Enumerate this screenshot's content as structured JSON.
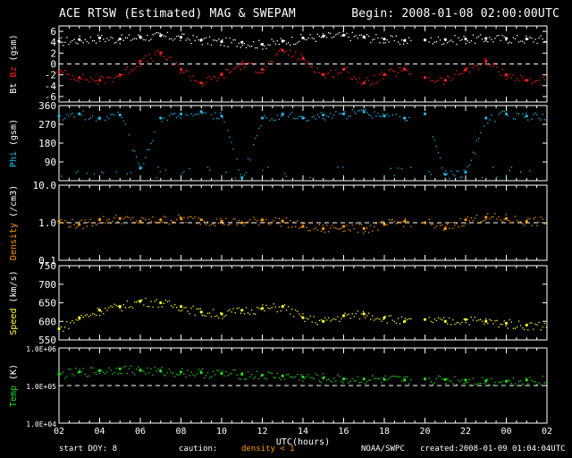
{
  "header": {
    "title": "ACE RTSW (Estimated) MAG & SWEPAM",
    "begin": "Begin: 2008-01-08 02:00:00UTC"
  },
  "footer": {
    "start_doy_label": "start DOY:   8",
    "caution_label": "caution:",
    "density_caution": "density < 1",
    "source": "NOAA/SWPC",
    "created": "created:2008-01-09 01:04:04UTC"
  },
  "colors": {
    "background": "#000000",
    "axis": "#ffffff",
    "bt": "#ffffff",
    "bz": "#ff2020",
    "phi": "#22b8e8",
    "density": "#ff9900",
    "speed": "#ffff33",
    "temp": "#22dd22"
  },
  "chart_data": {
    "type": "scatter",
    "title": "ACE RTSW (Estimated) MAG & SWEPAM",
    "xlabel": "UTC(hours)",
    "x_ticks": [
      "02",
      "04",
      "06",
      "08",
      "10",
      "12",
      "14",
      "16",
      "18",
      "20",
      "22",
      "00",
      "02"
    ],
    "xlim_hours": [
      2,
      26
    ],
    "panels": [
      {
        "id": "mag",
        "ylabel_parts": [
          "Bt",
          "Bz",
          "(gsm)"
        ],
        "ylim": [
          -7,
          7
        ],
        "y_ticks": [
          "-6",
          "-4",
          "-2",
          "0",
          "2",
          "4",
          "6"
        ],
        "y_tick_values": [
          -6,
          -4,
          -2,
          0,
          2,
          4,
          6
        ],
        "ref_line": 0,
        "series": [
          {
            "name": "Bt",
            "color": "#ffffff",
            "x": [
              2,
              3,
              4,
              5,
              6,
              7,
              8,
              9,
              10,
              11,
              12,
              13,
              14,
              15,
              16,
              17,
              18,
              19,
              20,
              21,
              22,
              23,
              24,
              25
            ],
            "y": [
              4.2,
              4.5,
              4.8,
              4.6,
              5.0,
              5.2,
              4.9,
              4.4,
              4.1,
              4.0,
              3.6,
              4.2,
              4.8,
              5.1,
              5.3,
              5.0,
              4.6,
              4.3,
              4.4,
              4.5,
              4.6,
              4.7,
              4.7,
              4.6
            ]
          },
          {
            "name": "Bz",
            "color": "#ff2020",
            "x": [
              2,
              3,
              4,
              5,
              6,
              7,
              8,
              9,
              10,
              11,
              12,
              13,
              14,
              15,
              16,
              17,
              18,
              19,
              20,
              21,
              22,
              23,
              24,
              25
            ],
            "y": [
              -1.5,
              -2.5,
              -3.0,
              -2.0,
              0.5,
              2.0,
              -1.0,
              -3.5,
              -2.0,
              0.0,
              -1.0,
              2.5,
              1.0,
              -2.0,
              -1.0,
              -3.5,
              -2.0,
              -1.0,
              -2.5,
              -3.0,
              -1.0,
              0.5,
              -2.0,
              -3.0
            ]
          }
        ]
      },
      {
        "id": "phi",
        "ylabel_parts": [
          "Phi",
          "(gsm)"
        ],
        "ylim": [
          0,
          360
        ],
        "y_ticks": [
          "90",
          "180",
          "270",
          "360"
        ],
        "y_tick_values": [
          90,
          180,
          270,
          360
        ],
        "series": [
          {
            "name": "Phi",
            "color": "#22b8e8",
            "x": [
              2,
              3,
              4,
              5,
              6,
              7,
              8,
              9,
              10,
              11,
              12,
              13,
              14,
              15,
              16,
              17,
              18,
              19,
              20,
              21,
              22,
              23,
              24,
              25
            ],
            "y": [
              310,
              320,
              300,
              315,
              60,
              300,
              320,
              330,
              310,
              15,
              300,
              320,
              300,
              315,
              320,
              330,
              310,
              300,
              320,
              30,
              40,
              300,
              320,
              310
            ]
          }
        ]
      },
      {
        "id": "density",
        "ylabel_parts": [
          "Density",
          "(/cm3)"
        ],
        "y_scale": "log",
        "ylim": [
          0.1,
          10
        ],
        "y_ticks": [
          "0.1",
          "1.0",
          "10.0"
        ],
        "y_tick_values": [
          0.1,
          1,
          10
        ],
        "ref_line": 1,
        "series": [
          {
            "name": "Density",
            "color": "#ff9900",
            "x": [
              2,
              3,
              4,
              5,
              6,
              7,
              8,
              9,
              10,
              11,
              12,
              13,
              14,
              15,
              16,
              17,
              18,
              19,
              20,
              21,
              22,
              23,
              24,
              25
            ],
            "y": [
              1.1,
              0.9,
              1.2,
              1.3,
              1.1,
              1.2,
              1.3,
              1.2,
              1.1,
              1.0,
              1.2,
              1.1,
              0.8,
              0.7,
              0.8,
              0.7,
              0.9,
              1.1,
              1.0,
              0.7,
              1.2,
              1.4,
              1.3,
              1.1
            ]
          }
        ]
      },
      {
        "id": "speed",
        "ylabel_parts": [
          "Speed",
          "(km/s)"
        ],
        "ylim": [
          550,
          750
        ],
        "y_ticks": [
          "550",
          "600",
          "650",
          "700",
          "750"
        ],
        "y_tick_values": [
          550,
          600,
          650,
          700,
          750
        ],
        "series": [
          {
            "name": "Speed",
            "color": "#ffff33",
            "x": [
              2,
              3,
              4,
              5,
              6,
              7,
              8,
              9,
              10,
              11,
              12,
              13,
              14,
              15,
              16,
              17,
              18,
              19,
              20,
              21,
              22,
              23,
              24,
              25
            ],
            "y": [
              580,
              610,
              630,
              640,
              655,
              650,
              640,
              625,
              620,
              630,
              635,
              640,
              610,
              600,
              615,
              620,
              610,
              600,
              605,
              600,
              605,
              600,
              595,
              590
            ]
          }
        ]
      },
      {
        "id": "temp",
        "ylabel_parts": [
          "Temp",
          "(K)"
        ],
        "y_scale": "log",
        "ylim": [
          10000,
          1000000
        ],
        "y_ticks": [
          "1.0E+04",
          "1.0E+05",
          "1.0E+06"
        ],
        "y_tick_values": [
          10000,
          100000,
          1000000
        ],
        "ref_line": 100000,
        "series": [
          {
            "name": "Temp",
            "color": "#22dd22",
            "x": [
              2,
              3,
              4,
              5,
              6,
              7,
              8,
              9,
              10,
              11,
              12,
              13,
              14,
              15,
              16,
              17,
              18,
              19,
              20,
              21,
              22,
              23,
              24,
              25
            ],
            "y": [
              200000,
              230000,
              250000,
              280000,
              260000,
              240000,
              230000,
              220000,
              210000,
              200000,
              190000,
              180000,
              170000,
              160000,
              150000,
              150000,
              145000,
              140000,
              150000,
              145000,
              140000,
              135000,
              130000,
              140000
            ]
          }
        ]
      }
    ]
  }
}
